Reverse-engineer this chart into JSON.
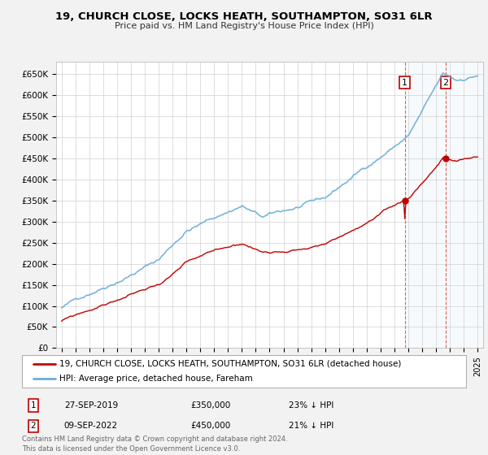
{
  "title": "19, CHURCH CLOSE, LOCKS HEATH, SOUTHAMPTON, SO31 6LR",
  "subtitle": "Price paid vs. HM Land Registry's House Price Index (HPI)",
  "ylim": [
    0,
    680000
  ],
  "yticks": [
    0,
    50000,
    100000,
    150000,
    200000,
    250000,
    300000,
    350000,
    400000,
    450000,
    500000,
    550000,
    600000,
    650000
  ],
  "ytick_labels": [
    "£0",
    "£50K",
    "£100K",
    "£150K",
    "£200K",
    "£250K",
    "£300K",
    "£350K",
    "£400K",
    "£450K",
    "£500K",
    "£550K",
    "£600K",
    "£650K"
  ],
  "hpi_color": "#6baed6",
  "price_color": "#c00000",
  "vline_color": "#d9534f",
  "purchase1_year": 2019.75,
  "purchase1_price": 350000,
  "purchase2_year": 2022.7,
  "purchase2_price": 450000,
  "legend_line1": "19, CHURCH CLOSE, LOCKS HEATH, SOUTHAMPTON, SO31 6LR (detached house)",
  "legend_line2": "HPI: Average price, detached house, Fareham",
  "table_row1": [
    "1",
    "27-SEP-2019",
    "£350,000",
    "23% ↓ HPI"
  ],
  "table_row2": [
    "2",
    "09-SEP-2022",
    "£450,000",
    "21% ↓ HPI"
  ],
  "footer": "Contains HM Land Registry data © Crown copyright and database right 2024.\nThis data is licensed under the Open Government Licence v3.0.",
  "background_color": "#f2f2f2",
  "plot_bg_color": "#ffffff",
  "shade_color": "#cce0f0"
}
